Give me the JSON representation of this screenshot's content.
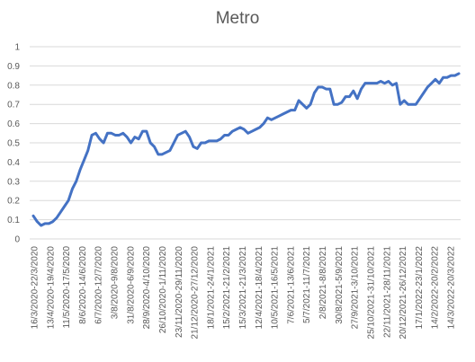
{
  "chart_data": {
    "type": "line",
    "title": "Metro",
    "xlabel": "",
    "ylabel": "",
    "ylim": [
      0,
      1
    ],
    "yticks": [
      "0",
      "0.1",
      "0.2",
      "0.3",
      "0.4",
      "0.5",
      "0.6",
      "0.7",
      "0.8",
      "0.9",
      "1"
    ],
    "grid": true,
    "legend": false,
    "color": "#4472C4",
    "x_tick_labels": [
      "16/3/2020-22/3/2020",
      "13/4/2020-19/4/2020",
      "11/5/2020-17/5/2020",
      "8/6/2020-14/6/2020",
      "6/7/2020-12/7/2020",
      "3/8/2020-9/8/2020",
      "31/8/2020-6/9/2020",
      "28/9/2020-4/10/2020",
      "26/10/2020-1/11/2020",
      "23/11/2020-29/11/2020",
      "21/12/2020-27/12/2020",
      "18/1/2021-24/1/2021",
      "15/2/2021-21/2/2021",
      "15/3/2021-21/3/2021",
      "12/4/2021-18/4/2021",
      "10/5/2021-16/5/2021",
      "7/6/2021-13/6/2021",
      "5/7/2021-11/7/2021",
      "2/8/2021-8/8/2021",
      "30/8/2021-5/9/2021",
      "27/9/2021-3/10/2021",
      "25/10/2021-31/10/2021",
      "22/11/2021-28/11/2021",
      "20/12/2021-26/12/2021",
      "17/1/2022-23/1/2022",
      "14/2/2022-20/2/2022",
      "14/3/2022-20/3/2022"
    ],
    "series": [
      {
        "values": [
          0.12,
          0.09,
          0.07,
          0.08,
          0.08,
          0.09,
          0.11,
          0.14,
          0.17,
          0.2,
          0.26,
          0.3,
          0.36,
          0.41,
          0.46,
          0.54,
          0.55,
          0.52,
          0.5,
          0.55,
          0.55,
          0.54,
          0.54,
          0.55,
          0.53,
          0.5,
          0.53,
          0.52,
          0.56,
          0.56,
          0.5,
          0.48,
          0.44,
          0.44,
          0.45,
          0.46,
          0.5,
          0.54,
          0.55,
          0.56,
          0.53,
          0.48,
          0.47,
          0.5,
          0.5,
          0.51,
          0.51,
          0.51,
          0.52,
          0.54,
          0.54,
          0.56,
          0.57,
          0.58,
          0.57,
          0.55,
          0.56,
          0.57,
          0.58,
          0.6,
          0.63,
          0.62,
          0.63,
          0.64,
          0.65,
          0.66,
          0.67,
          0.67,
          0.72,
          0.7,
          0.68,
          0.7,
          0.76,
          0.79,
          0.79,
          0.78,
          0.78,
          0.7,
          0.7,
          0.71,
          0.74,
          0.74,
          0.77,
          0.73,
          0.78,
          0.81,
          0.81,
          0.81,
          0.81,
          0.82,
          0.81,
          0.82,
          0.8,
          0.81,
          0.7,
          0.72,
          0.7,
          0.7,
          0.7,
          0.73,
          0.76,
          0.79,
          0.81,
          0.83,
          0.81,
          0.84,
          0.84,
          0.85,
          0.85,
          0.86
        ]
      }
    ]
  }
}
